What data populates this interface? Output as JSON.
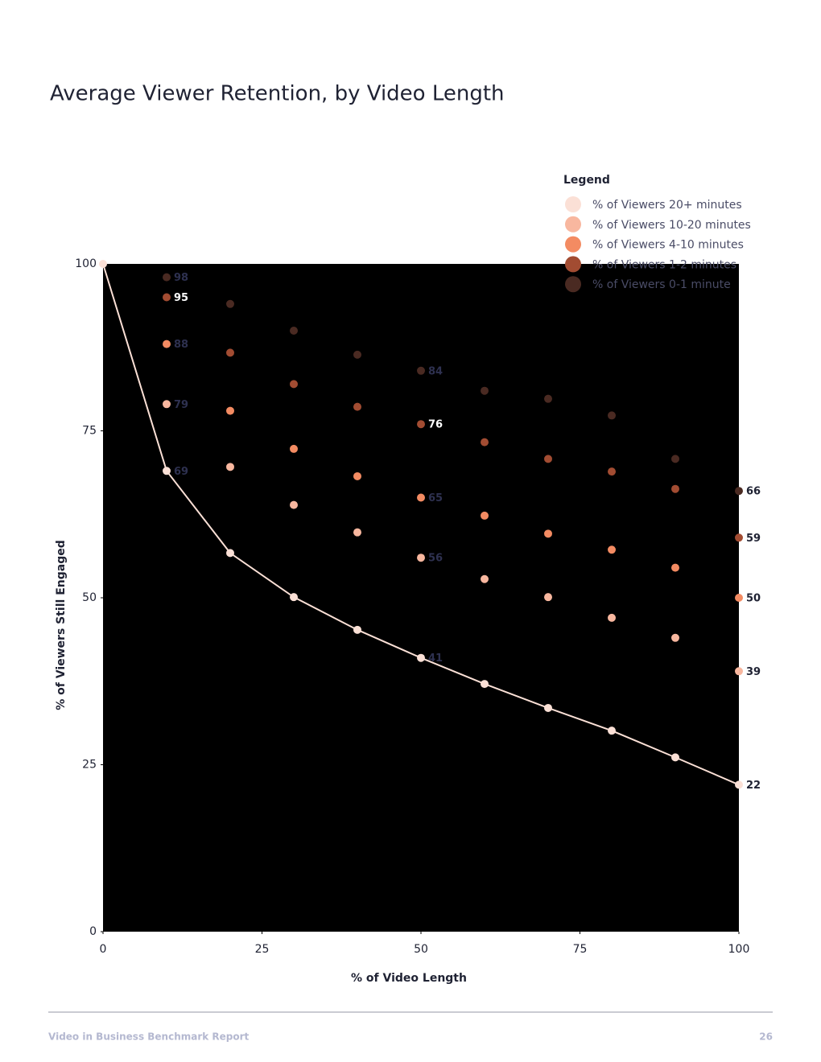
{
  "chart_data": {
    "type": "line",
    "title": "Average Viewer Retention, by Video Length",
    "x_label": "% of Video Length",
    "y_label": "% of Viewers Still Engaged",
    "x": [
      0,
      10,
      20,
      30,
      40,
      50,
      60,
      70,
      80,
      90,
      100
    ],
    "xlim": [
      0,
      100
    ],
    "xticks": [
      0,
      25,
      50,
      75,
      100
    ],
    "ylim": [
      0,
      100
    ],
    "yticks": [
      0,
      25,
      50,
      75,
      100
    ],
    "grid": false,
    "plot_background": "#000000",
    "legend_title": "Legend",
    "legend_position": "top-right",
    "data_labels_at": [
      10,
      50,
      100
    ],
    "series": [
      {
        "name": "% of Viewers 20+ minutes",
        "color": "#fbe0d6",
        "line": true,
        "values": [
          100,
          69,
          56.7,
          50.1,
          45.2,
          41,
          37.1,
          33.5,
          30.1,
          26.1,
          22
        ]
      },
      {
        "name": "% of Viewers 10-20 minutes",
        "color": "#f8b79f",
        "line": false,
        "values": [
          null,
          79,
          69.6,
          63.9,
          59.8,
          56,
          52.8,
          50.1,
          47,
          44,
          39
        ]
      },
      {
        "name": "% of Viewers 4-10 minutes",
        "color": "#f38b62",
        "line": false,
        "values": [
          null,
          88,
          78,
          72.3,
          68.2,
          65,
          62.3,
          59.6,
          57.2,
          54.5,
          50
        ]
      },
      {
        "name": "% of Viewers 1-2 minutes",
        "color": "#a24c32",
        "line": false,
        "label_color": "#ffffff",
        "values": [
          null,
          95,
          86.7,
          82,
          78.6,
          76,
          73.3,
          70.8,
          68.9,
          66.3,
          59
        ]
      },
      {
        "name": "% of Viewers 0-1 minute",
        "color": "#4a2a22",
        "line": false,
        "values": [
          null,
          98,
          94,
          90,
          86.4,
          84,
          81,
          79.8,
          77.3,
          70.8,
          66
        ]
      }
    ]
  },
  "footer": {
    "left": "Video in Business Benchmark Report",
    "page": "26"
  }
}
